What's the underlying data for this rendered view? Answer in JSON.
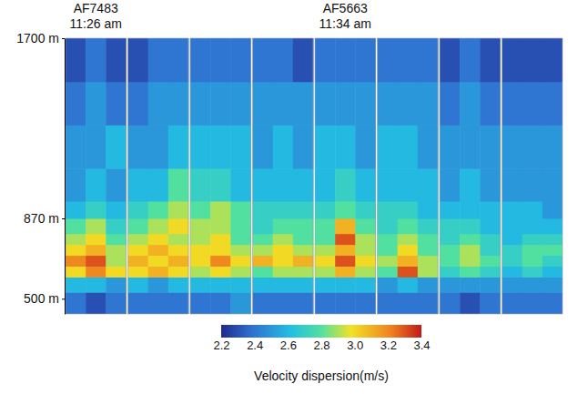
{
  "chart_data": {
    "type": "heatmap",
    "ylim": [
      430,
      1700
    ],
    "yticks": [
      {
        "value": 500,
        "label": "500 m"
      },
      {
        "value": 870,
        "label": "870 m"
      },
      {
        "value": 1700,
        "label": "1700 m"
      }
    ],
    "y_bins": [
      430,
      530,
      600,
      650,
      700,
      750,
      800,
      870,
      950,
      1100,
      1300,
      1500,
      1700
    ],
    "panels": [
      {
        "label": "AF7483",
        "time": "11:26 am",
        "cells": [
          [
            2.4,
            2.3,
            2.4
          ],
          [
            2.6,
            2.6,
            2.5
          ],
          [
            3.0,
            3.2,
            3.0
          ],
          [
            3.2,
            3.3,
            2.9
          ],
          [
            3.0,
            3.1,
            2.9
          ],
          [
            2.9,
            3.0,
            2.8
          ],
          [
            2.8,
            2.9,
            2.7
          ],
          [
            2.6,
            2.7,
            2.6
          ],
          [
            2.5,
            2.6,
            2.5
          ],
          [
            2.5,
            2.5,
            2.6
          ],
          [
            2.4,
            2.5,
            2.4
          ],
          [
            2.3,
            2.4,
            2.3
          ]
        ]
      },
      {
        "cells": [
          [
            2.4,
            2.4,
            2.4
          ],
          [
            2.6,
            2.5,
            2.6
          ],
          [
            3.0,
            3.1,
            3.0
          ],
          [
            3.1,
            3.0,
            3.1
          ],
          [
            3.0,
            3.1,
            3.0
          ],
          [
            2.9,
            3.0,
            2.9
          ],
          [
            2.8,
            2.9,
            3.0
          ],
          [
            2.7,
            2.8,
            2.9
          ],
          [
            2.6,
            2.6,
            2.8
          ],
          [
            2.5,
            2.5,
            2.6
          ],
          [
            2.4,
            2.5,
            2.5
          ],
          [
            2.3,
            2.4,
            2.4
          ]
        ]
      },
      {
        "cells": [
          [
            2.4,
            2.4,
            2.5
          ],
          [
            2.6,
            2.6,
            2.6
          ],
          [
            2.9,
            3.0,
            2.9
          ],
          [
            3.0,
            3.2,
            3.0
          ],
          [
            3.0,
            3.0,
            2.9
          ],
          [
            2.9,
            3.0,
            2.8
          ],
          [
            2.9,
            2.9,
            2.8
          ],
          [
            2.8,
            2.9,
            2.8
          ],
          [
            2.7,
            2.7,
            2.6
          ],
          [
            2.6,
            2.6,
            2.6
          ],
          [
            2.5,
            2.5,
            2.5
          ],
          [
            2.4,
            2.4,
            2.4
          ]
        ]
      },
      {
        "cells": [
          [
            2.4,
            2.4,
            2.4
          ],
          [
            2.6,
            2.6,
            2.6
          ],
          [
            2.8,
            2.9,
            2.9
          ],
          [
            3.1,
            3.0,
            3.1
          ],
          [
            2.9,
            3.0,
            2.9
          ],
          [
            2.8,
            2.9,
            2.8
          ],
          [
            2.7,
            2.8,
            2.8
          ],
          [
            2.7,
            2.7,
            2.7
          ],
          [
            2.6,
            2.6,
            2.6
          ],
          [
            2.5,
            2.6,
            2.5
          ],
          [
            2.5,
            2.5,
            2.5
          ],
          [
            2.4,
            2.4,
            2.3
          ]
        ]
      },
      {
        "label": "AF5663",
        "time": "11:34 am",
        "cells": [
          [
            2.4,
            2.4,
            2.4
          ],
          [
            2.6,
            2.6,
            2.6
          ],
          [
            2.9,
            3.1,
            2.9
          ],
          [
            3.0,
            3.3,
            3.0
          ],
          [
            2.9,
            3.1,
            2.9
          ],
          [
            2.8,
            3.3,
            2.9
          ],
          [
            2.8,
            3.1,
            2.8
          ],
          [
            2.7,
            2.8,
            2.7
          ],
          [
            2.6,
            2.7,
            2.6
          ],
          [
            2.6,
            2.6,
            2.5
          ],
          [
            2.5,
            2.5,
            2.5
          ],
          [
            2.4,
            2.4,
            2.4
          ]
        ]
      },
      {
        "cells": [
          [
            2.4,
            2.4,
            2.4
          ],
          [
            2.5,
            2.6,
            2.5
          ],
          [
            2.8,
            3.3,
            2.9
          ],
          [
            2.9,
            3.1,
            2.9
          ],
          [
            2.8,
            3.0,
            2.8
          ],
          [
            2.8,
            2.9,
            2.8
          ],
          [
            2.7,
            2.8,
            2.7
          ],
          [
            2.7,
            2.7,
            2.6
          ],
          [
            2.6,
            2.6,
            2.6
          ],
          [
            2.6,
            2.6,
            2.5
          ],
          [
            2.5,
            2.5,
            2.5
          ],
          [
            2.4,
            2.4,
            2.4
          ]
        ]
      },
      {
        "cells": [
          [
            2.4,
            2.3,
            2.4
          ],
          [
            2.5,
            2.5,
            2.5
          ],
          [
            2.7,
            2.8,
            2.7
          ],
          [
            2.8,
            2.9,
            2.8
          ],
          [
            2.8,
            2.9,
            2.7
          ],
          [
            2.7,
            2.8,
            2.7
          ],
          [
            2.7,
            2.7,
            2.6
          ],
          [
            2.6,
            2.6,
            2.6
          ],
          [
            2.5,
            2.6,
            2.5
          ],
          [
            2.5,
            2.5,
            2.5
          ],
          [
            2.4,
            2.5,
            2.4
          ],
          [
            2.3,
            2.4,
            2.3
          ]
        ]
      },
      {
        "cells": [
          [
            2.4,
            2.4,
            2.4
          ],
          [
            2.5,
            2.5,
            2.5
          ],
          [
            2.6,
            2.7,
            2.6
          ],
          [
            2.7,
            2.8,
            2.7
          ],
          [
            2.7,
            2.8,
            2.8
          ],
          [
            2.6,
            2.7,
            2.7
          ],
          [
            2.6,
            2.6,
            2.6
          ],
          [
            2.6,
            2.6,
            2.5
          ],
          [
            2.5,
            2.5,
            2.5
          ],
          [
            2.5,
            2.5,
            2.5
          ],
          [
            2.4,
            2.4,
            2.4
          ],
          [
            2.3,
            2.3,
            2.3
          ]
        ]
      }
    ],
    "colorbar": {
      "title": "Velocity dispersion(m/s)",
      "range": [
        2.2,
        3.4
      ],
      "ticks": [
        2.2,
        2.4,
        2.6,
        2.8,
        {
          "value": 3.0,
          "label": "3.0"
        },
        3.2,
        3.4
      ]
    }
  }
}
